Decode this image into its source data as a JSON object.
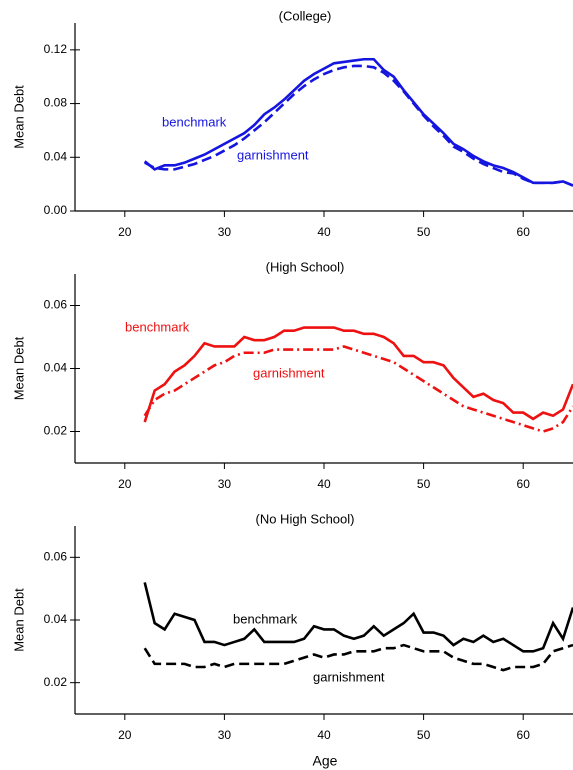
{
  "chart_data": [
    {
      "type": "line",
      "title": "(College)",
      "ylabel": "Mean Debt",
      "x": [
        22,
        23,
        24,
        25,
        26,
        27,
        28,
        29,
        30,
        31,
        32,
        33,
        34,
        35,
        36,
        37,
        38,
        39,
        40,
        41,
        42,
        43,
        44,
        45,
        46,
        47,
        48,
        49,
        50,
        51,
        52,
        53,
        54,
        55,
        56,
        57,
        58,
        59,
        60,
        61,
        62,
        63,
        64,
        65
      ],
      "series": [
        {
          "name": "benchmark",
          "color": "#1515e0",
          "line_style": "solid",
          "values": [
            0.037,
            0.031,
            0.034,
            0.034,
            0.036,
            0.039,
            0.042,
            0.046,
            0.05,
            0.054,
            0.058,
            0.064,
            0.072,
            0.077,
            0.083,
            0.09,
            0.097,
            0.102,
            0.106,
            0.11,
            0.111,
            0.112,
            0.113,
            0.113,
            0.105,
            0.1,
            0.09,
            0.081,
            0.072,
            0.065,
            0.058,
            0.05,
            0.046,
            0.041,
            0.037,
            0.034,
            0.032,
            0.029,
            0.025,
            0.021,
            0.021,
            0.021,
            0.022,
            0.019
          ]
        },
        {
          "name": "garnishment",
          "color": "#1515e0",
          "line_style": "dashed",
          "values": [
            0.036,
            0.032,
            0.031,
            0.031,
            0.033,
            0.035,
            0.038,
            0.041,
            0.045,
            0.049,
            0.054,
            0.06,
            0.066,
            0.073,
            0.08,
            0.087,
            0.093,
            0.098,
            0.102,
            0.105,
            0.107,
            0.108,
            0.108,
            0.107,
            0.103,
            0.097,
            0.089,
            0.08,
            0.071,
            0.063,
            0.056,
            0.048,
            0.044,
            0.039,
            0.035,
            0.032,
            0.029,
            0.028,
            0.024,
            0.021,
            0.021,
            0.021,
            0.022,
            0.019
          ]
        }
      ],
      "xlim": [
        15,
        65
      ],
      "xticks": [
        20,
        30,
        40,
        50,
        60
      ],
      "ylim": [
        0,
        0.14
      ],
      "yticks": [
        {
          "value": 0,
          "label": "0.00"
        },
        0.04,
        0.08,
        0.12
      ]
    },
    {
      "type": "line",
      "title": "(High School)",
      "ylabel": "Mean Debt",
      "x": [
        22,
        23,
        24,
        25,
        26,
        27,
        28,
        29,
        30,
        31,
        32,
        33,
        34,
        35,
        36,
        37,
        38,
        39,
        40,
        41,
        42,
        43,
        44,
        45,
        46,
        47,
        48,
        49,
        50,
        51,
        52,
        53,
        54,
        55,
        56,
        57,
        58,
        59,
        60,
        61,
        62,
        63,
        64,
        65
      ],
      "series": [
        {
          "name": "benchmark",
          "color": "#ee1111",
          "line_style": "solid",
          "values": [
            0.023,
            0.033,
            0.035,
            0.039,
            0.041,
            0.044,
            0.048,
            0.047,
            0.047,
            0.047,
            0.05,
            0.049,
            0.049,
            0.05,
            0.052,
            0.052,
            0.053,
            0.053,
            0.053,
            0.053,
            0.052,
            0.052,
            0.051,
            0.051,
            0.05,
            0.048,
            0.044,
            0.044,
            0.042,
            0.042,
            0.041,
            0.037,
            0.034,
            0.031,
            0.032,
            0.03,
            0.029,
            0.026,
            0.026,
            0.024,
            0.026,
            0.025,
            0.027,
            0.035
          ]
        },
        {
          "name": "garnishment",
          "color": "#ee1111",
          "line_style": "dash-dot",
          "values": [
            0.025,
            0.03,
            0.032,
            0.033,
            0.035,
            0.037,
            0.039,
            0.041,
            0.042,
            0.044,
            0.045,
            0.045,
            0.045,
            0.046,
            0.046,
            0.046,
            0.046,
            0.046,
            0.046,
            0.046,
            0.047,
            0.046,
            0.045,
            0.044,
            0.043,
            0.042,
            0.04,
            0.038,
            0.036,
            0.034,
            0.032,
            0.03,
            0.028,
            0.027,
            0.026,
            0.025,
            0.024,
            0.023,
            0.022,
            0.021,
            0.02,
            0.021,
            0.023,
            0.028
          ]
        }
      ],
      "xlim": [
        15,
        65
      ],
      "xticks": [
        20,
        30,
        40,
        50,
        60
      ],
      "ylim": [
        0.01,
        0.07
      ],
      "yticks": [
        0.02,
        0.04,
        0.06
      ]
    },
    {
      "type": "line",
      "title": "(No High School)",
      "ylabel": "Mean Debt",
      "xlabel": "Age",
      "x": [
        22,
        23,
        24,
        25,
        26,
        27,
        28,
        29,
        30,
        31,
        32,
        33,
        34,
        35,
        36,
        37,
        38,
        39,
        40,
        41,
        42,
        43,
        44,
        45,
        46,
        47,
        48,
        49,
        50,
        51,
        52,
        53,
        54,
        55,
        56,
        57,
        58,
        59,
        60,
        61,
        62,
        63,
        64,
        65
      ],
      "series": [
        {
          "name": "benchmark",
          "color": "#000000",
          "line_style": "solid",
          "values": [
            0.052,
            0.039,
            0.037,
            0.042,
            0.041,
            0.04,
            0.033,
            0.033,
            0.032,
            0.033,
            0.034,
            0.037,
            0.033,
            0.033,
            0.033,
            0.033,
            0.034,
            0.038,
            0.037,
            0.037,
            0.035,
            0.034,
            0.035,
            0.038,
            0.035,
            0.037,
            0.039,
            0.042,
            0.036,
            0.036,
            0.035,
            0.032,
            0.034,
            0.033,
            0.035,
            0.033,
            0.034,
            0.032,
            0.03,
            0.03,
            0.031,
            0.039,
            0.034,
            0.044
          ]
        },
        {
          "name": "garnishment",
          "color": "#000000",
          "line_style": "dashed",
          "values": [
            0.031,
            0.026,
            0.026,
            0.026,
            0.026,
            0.025,
            0.025,
            0.026,
            0.025,
            0.026,
            0.026,
            0.026,
            0.026,
            0.026,
            0.026,
            0.027,
            0.028,
            0.029,
            0.028,
            0.029,
            0.029,
            0.03,
            0.03,
            0.03,
            0.031,
            0.031,
            0.032,
            0.031,
            0.03,
            0.03,
            0.03,
            0.028,
            0.027,
            0.026,
            0.026,
            0.025,
            0.024,
            0.025,
            0.025,
            0.025,
            0.026,
            0.03,
            0.031,
            0.032
          ]
        }
      ],
      "xlim": [
        15,
        65
      ],
      "xticks": [
        20,
        30,
        40,
        50,
        60
      ],
      "ylim": [
        0.01,
        0.07
      ],
      "yticks": [
        0.02,
        0.04,
        0.06
      ]
    }
  ]
}
